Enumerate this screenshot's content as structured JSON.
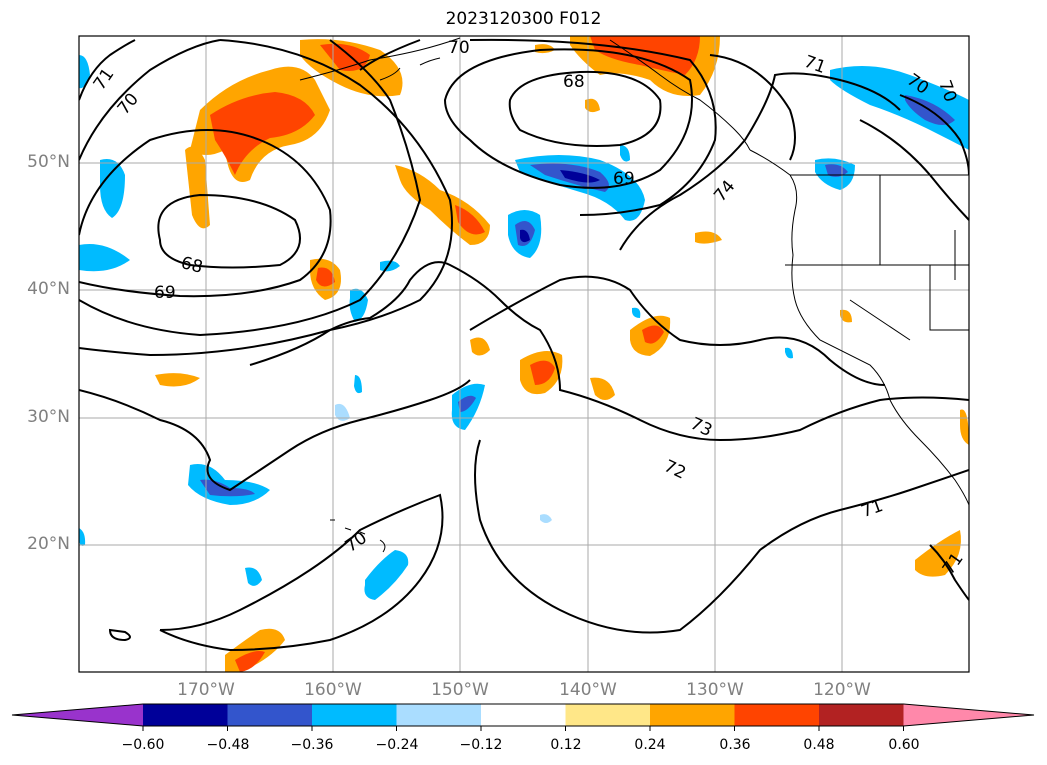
{
  "title": "2023120300 F012",
  "lon_labels": [
    "170°W",
    "160°W",
    "150°W",
    "140°W",
    "130°W",
    "120°W"
  ],
  "lat_labels": [
    "50°N",
    "40°N",
    "30°N",
    "20°N"
  ],
  "contour_labels": [
    "70",
    "71",
    "70",
    "68",
    "71",
    "70",
    "70",
    "74",
    "69",
    "68",
    "69",
    "73",
    "72",
    "71",
    "70",
    "71"
  ],
  "colorbar": {
    "ticks": [
      "−0.60",
      "−0.48",
      "−0.36",
      "−0.24",
      "−0.12",
      "0.12",
      "0.24",
      "0.36",
      "0.48",
      "0.60"
    ],
    "colors": [
      "#9933cc",
      "#000099",
      "#3355cc",
      "#00bbff",
      "#aaddff",
      "#ffffff",
      "#ffe788",
      "#ffa500",
      "#ff4400",
      "#b22222",
      "#ff88aa",
      "#ff88aa"
    ]
  },
  "colors": {
    "neg_light": "#aaddff",
    "neg_mid": "#00bbff",
    "neg_strong": "#3355cc",
    "neg_max": "#000099",
    "pos_light": "#ffe788",
    "pos_mid": "#ffa500",
    "pos_strong": "#ff4400",
    "pos_max": "#b22222",
    "grid": "#aaaaaa",
    "tick_label": "#808080"
  }
}
